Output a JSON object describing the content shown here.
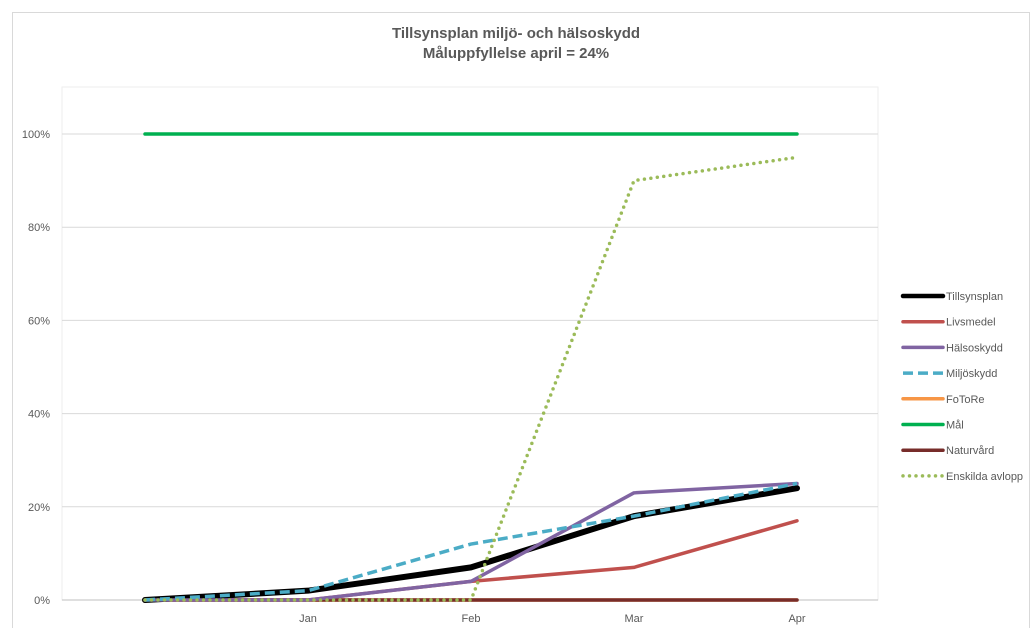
{
  "chart_data": {
    "type": "line",
    "title": "Tillsynsplan miljö- och hälsoskydd",
    "subtitle": "Måluppfyllelse april = 24%",
    "categories": [
      "",
      "Jan",
      "Feb",
      "Mar",
      "Apr"
    ],
    "ylim": [
      0,
      1.1
    ],
    "yticks": [
      0,
      0.2,
      0.4,
      0.6,
      0.8,
      1.0
    ],
    "ytick_labels": [
      "0%",
      "20%",
      "40%",
      "60%",
      "80%",
      "100%"
    ],
    "grid": "horizontal",
    "legend_position": "right",
    "series": [
      {
        "name": "Tillsynsplan",
        "values": [
          0.0,
          0.02,
          0.07,
          0.18,
          0.24
        ],
        "color": "#000000",
        "style": "solid-thick"
      },
      {
        "name": "Livsmedel",
        "values": [
          0.0,
          0.0,
          0.04,
          0.07,
          0.17
        ],
        "color": "#c0504d",
        "style": "solid"
      },
      {
        "name": "Hälsoskydd",
        "values": [
          0.0,
          0.0,
          0.04,
          0.23,
          0.25
        ],
        "color": "#8064a2",
        "style": "solid"
      },
      {
        "name": "Miljöskydd",
        "values": [
          0.0,
          0.02,
          0.12,
          0.18,
          0.25
        ],
        "color": "#4bacc6",
        "style": "dashed"
      },
      {
        "name": "FoToRe",
        "values": [
          0.0,
          0.0,
          0.0,
          0.0,
          0.0
        ],
        "color": "#f79646",
        "style": "solid"
      },
      {
        "name": "Mål",
        "values": [
          1.0,
          1.0,
          1.0,
          1.0,
          1.0
        ],
        "color": "#00b050",
        "style": "solid"
      },
      {
        "name": "Naturvård",
        "values": [
          0.0,
          0.0,
          0.0,
          0.0,
          0.0
        ],
        "color": "#772c2a",
        "style": "solid"
      },
      {
        "name": "Enskilda avlopp",
        "values": [
          0.0,
          0.0,
          0.0,
          0.9,
          0.95
        ],
        "color": "#9bbb59",
        "style": "dotted"
      }
    ]
  }
}
